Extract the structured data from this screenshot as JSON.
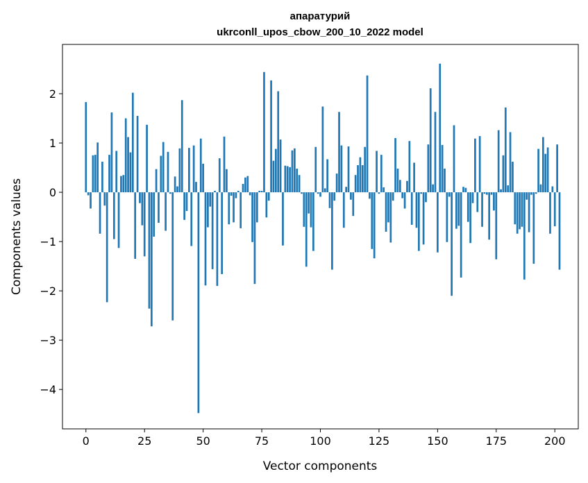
{
  "chart_data": {
    "type": "bar",
    "title_line1": "апаратурий",
    "title_line2": "ukrconll_upos_cbow_200_10_2022 model",
    "xlabel": "Vector components",
    "ylabel": "Components values",
    "xlim": [
      -10,
      210
    ],
    "ylim": [
      -4.8,
      3.0
    ],
    "xticks": [
      0,
      25,
      50,
      75,
      100,
      125,
      150,
      175,
      200
    ],
    "yticks": [
      2,
      1,
      0,
      -1,
      -2,
      -3,
      -4
    ],
    "xtick_labels": [
      "0",
      "25",
      "50",
      "75",
      "100",
      "125",
      "150",
      "175",
      "200"
    ],
    "ytick_labels": [
      "2",
      "1",
      "0",
      "−1",
      "−2",
      "−3",
      "−4"
    ],
    "bar_color": "#1f77b4",
    "values": [
      1.83,
      -0.06,
      -0.33,
      0.75,
      0.76,
      1.01,
      -0.84,
      0.62,
      -0.27,
      -2.23,
      0.76,
      1.62,
      -0.95,
      0.84,
      -1.13,
      0.33,
      0.35,
      1.5,
      1.12,
      0.81,
      2.02,
      -1.35,
      1.55,
      -0.22,
      -0.67,
      -1.3,
      1.37,
      -2.36,
      -2.72,
      -0.9,
      0.47,
      -0.62,
      0.74,
      1.02,
      -0.78,
      0.82,
      -0.03,
      -2.6,
      0.32,
      0.12,
      0.89,
      1.87,
      -0.56,
      -0.38,
      0.9,
      -1.09,
      0.95,
      0.21,
      -4.48,
      1.09,
      0.58,
      -1.89,
      -0.71,
      -0.29,
      -1.56,
      0.03,
      -1.9,
      0.69,
      -1.66,
      1.13,
      0.47,
      -0.65,
      -0.07,
      -0.61,
      -0.12,
      0.03,
      -0.73,
      0.17,
      0.3,
      0.33,
      -0.06,
      -1.01,
      -1.86,
      -0.61,
      0.03,
      0.03,
      2.44,
      -0.51,
      -0.17,
      2.27,
      0.64,
      0.88,
      2.05,
      1.07,
      -1.08,
      0.54,
      0.53,
      0.51,
      0.85,
      0.89,
      0.48,
      0.35,
      -0.03,
      -0.7,
      -1.51,
      -0.43,
      -0.71,
      -1.19,
      0.92,
      -0.03,
      -0.09,
      1.74,
      0.08,
      0.67,
      -0.32,
      -1.57,
      -0.17,
      0.38,
      1.63,
      0.95,
      -0.72,
      0.11,
      0.93,
      -0.15,
      -0.48,
      0.35,
      0.55,
      0.71,
      0.55,
      0.92,
      2.37,
      -0.13,
      -1.15,
      -1.34,
      0.84,
      -0.03,
      0.76,
      0.1,
      -0.8,
      -0.61,
      -1.02,
      -0.17,
      1.1,
      0.48,
      0.25,
      -0.12,
      -0.33,
      0.23,
      1.04,
      -0.66,
      0.6,
      -0.72,
      -1.19,
      -0.03,
      -1.06,
      -0.2,
      0.97,
      2.11,
      0.16,
      1.63,
      -1.22,
      2.61,
      0.96,
      0.48,
      -1.01,
      -0.09,
      -2.1,
      1.36,
      -0.74,
      -0.68,
      -1.73,
      0.11,
      0.09,
      -0.6,
      -1.03,
      -0.22,
      1.09,
      -0.4,
      1.14,
      -0.7,
      -0.03,
      -0.05,
      -0.96,
      -0.05,
      -0.37,
      -1.36,
      1.26,
      0.06,
      0.75,
      1.72,
      0.14,
      1.22,
      0.62,
      -0.65,
      -0.84,
      -0.75,
      -0.7,
      -1.77,
      -0.15,
      -0.81,
      -0.05,
      -1.45,
      -0.03,
      0.88,
      0.16,
      1.12,
      0.78,
      0.91,
      -0.84,
      0.12,
      -0.69,
      0.97,
      -1.57
    ]
  }
}
